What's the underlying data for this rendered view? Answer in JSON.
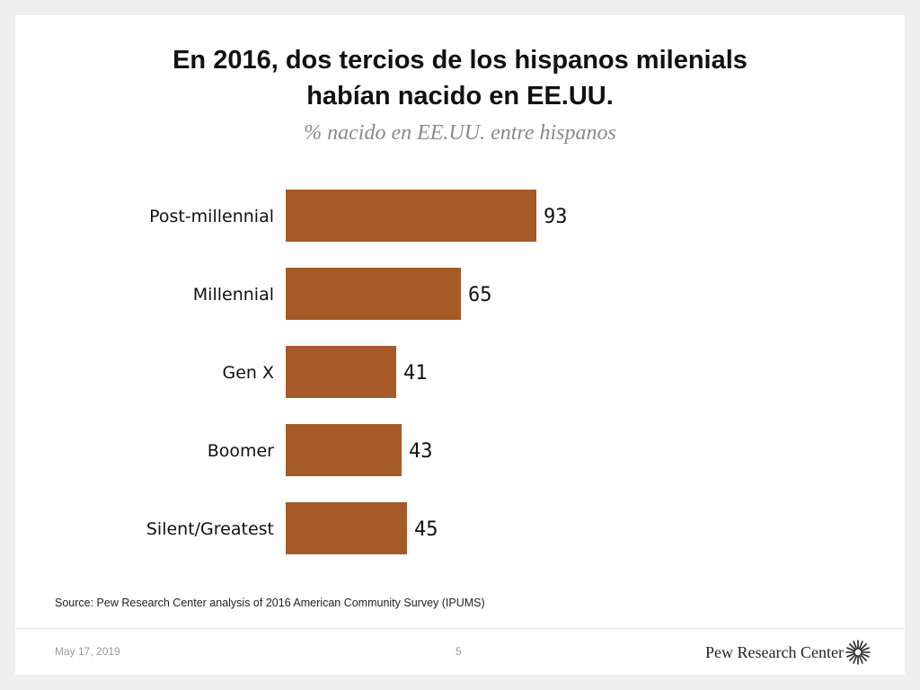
{
  "title_lines": [
    "En 2016, dos tercios de los hispanos milenials",
    "habían nacido en EE.UU."
  ],
  "subtitle": "% nacido en EE.UU. entre hispanos",
  "chart_data": {
    "type": "bar",
    "orientation": "horizontal",
    "title": "En 2016, dos tercios de los hispanos milenials habían nacido en EE.UU.",
    "subtitle": "% nacido en EE.UU. entre hispanos",
    "categories": [
      "Post-millennial",
      "Millennial",
      "Gen X",
      "Boomer",
      "Silent/Greatest"
    ],
    "values": [
      93,
      65,
      41,
      43,
      45
    ],
    "xlim": [
      0,
      100
    ],
    "bar_color": "#a55a28",
    "grid": false
  },
  "source": "Source: Pew Research Center analysis of 2016 American Community Survey (IPUMS)",
  "footer": {
    "date": "May 17, 2019",
    "page_number": "5",
    "brand": "Pew Research Center"
  }
}
